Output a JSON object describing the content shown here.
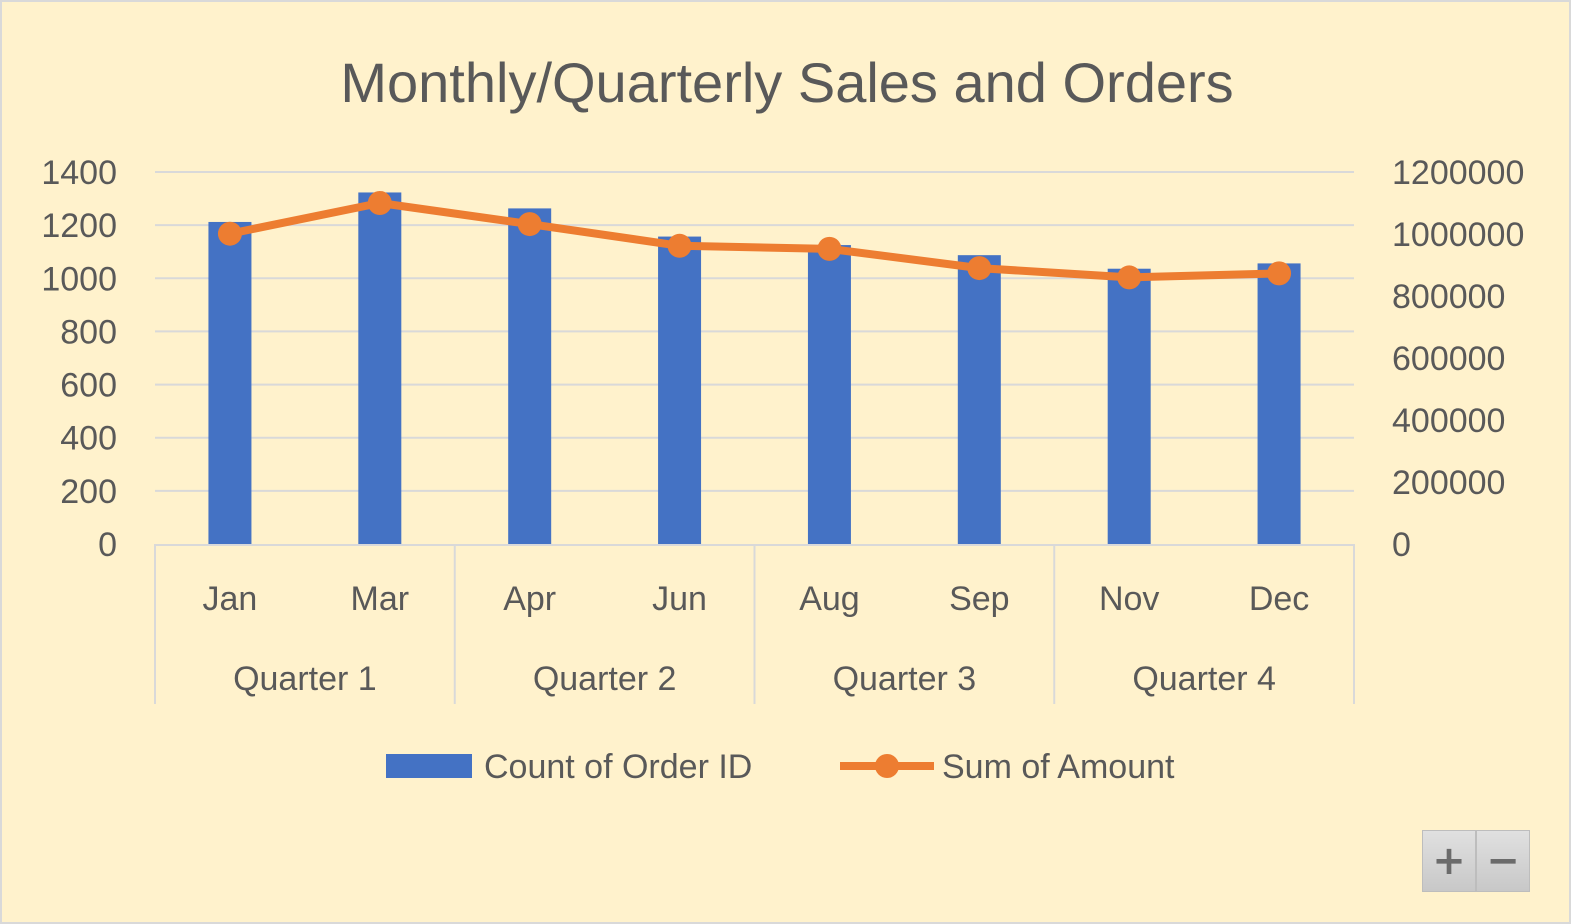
{
  "chart_data": {
    "type": "bar",
    "title": "Monthly/Quarterly Sales and Orders",
    "categories": [
      "Jan",
      "Mar",
      "Apr",
      "Jun",
      "Aug",
      "Sep",
      "Nov",
      "Dec"
    ],
    "groups": [
      {
        "label": "Quarter 1",
        "span": 2
      },
      {
        "label": "Quarter 2",
        "span": 2
      },
      {
        "label": "Quarter 3",
        "span": 2
      },
      {
        "label": "Quarter 4",
        "span": 2
      }
    ],
    "series": [
      {
        "name": "Count of Order ID",
        "kind": "bar",
        "axis": "left",
        "color": "#4472c4",
        "values": [
          1212,
          1323,
          1263,
          1157,
          1125,
          1087,
          1036,
          1056
        ]
      },
      {
        "name": "Sum of Amount",
        "kind": "line",
        "axis": "right",
        "color": "#ed7d31",
        "values": [
          1001000,
          1100000,
          1032000,
          962000,
          952000,
          890000,
          860000,
          873000
        ]
      }
    ],
    "y_left": {
      "ticks": [
        "0",
        "200",
        "400",
        "600",
        "800",
        "1000",
        "1200",
        "1400"
      ],
      "ylim": [
        0,
        1400
      ]
    },
    "y_right": {
      "ticks": [
        "0",
        "200000",
        "400000",
        "600000",
        "800000",
        "1000000",
        "1200000"
      ],
      "ylim": [
        0,
        1200000
      ]
    },
    "grid": true,
    "legend_position": "bottom"
  },
  "controls": {
    "zoom_in": "+",
    "zoom_out": "−"
  },
  "colors": {
    "background": "#fff2cc",
    "text": "#595959",
    "grid": "#d9d9d9"
  }
}
